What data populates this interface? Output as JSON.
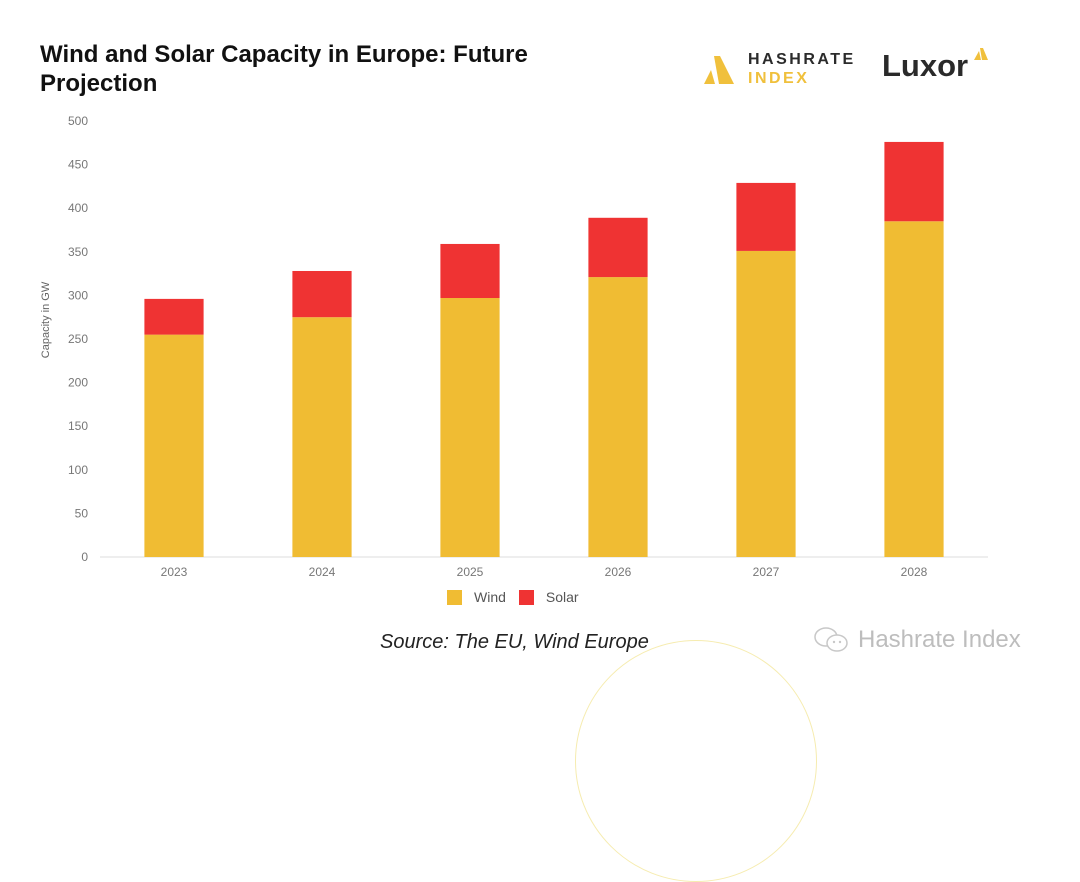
{
  "header": {
    "title": "Wind and Solar Capacity in Europe: Future Projection",
    "logo_hashrate_line1": "HASHRATE",
    "logo_hashrate_line2": "INDEX",
    "logo_luxor": "Luxor"
  },
  "footer": {
    "source": "Source: The EU, Wind Europe",
    "watermark": "Hashrate Index"
  },
  "colors": {
    "wind": "#f0bc33",
    "solar": "#ef3333",
    "brand_yellow": "#f0c03c"
  },
  "chart_data": {
    "type": "bar",
    "stacked": true,
    "title": "Wind and Solar Capacity in Europe: Future Projection",
    "xlabel": "",
    "ylabel": "Capacity in GW",
    "categories": [
      "2023",
      "2024",
      "2025",
      "2026",
      "2027",
      "2028"
    ],
    "series": [
      {
        "name": "Wind",
        "color": "#f0bc33",
        "values": [
          255,
          275,
          297,
          321,
          351,
          385
        ]
      },
      {
        "name": "Solar",
        "color": "#ef3333",
        "values": [
          41,
          53,
          62,
          68,
          78,
          91
        ]
      }
    ],
    "ylim": [
      0,
      500
    ],
    "yticks": [
      0,
      50,
      100,
      150,
      200,
      250,
      300,
      350,
      400,
      450,
      500
    ],
    "grid": false,
    "legend": {
      "position": "bottom-center",
      "entries": [
        "Wind",
        "Solar"
      ]
    }
  }
}
